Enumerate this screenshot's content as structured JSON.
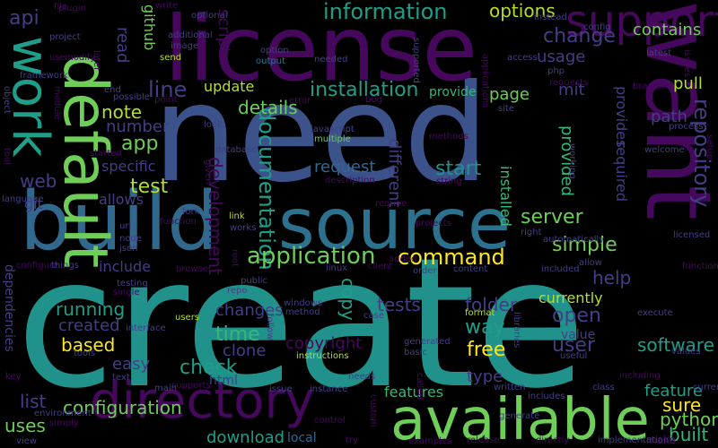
{
  "background_color": "#000000",
  "palette": {
    "purple": "#46085c",
    "violet": "#433e85",
    "indigo": "#3b528b",
    "blue": "#31688e",
    "steel": "#2c728e",
    "teal": "#21918c",
    "cyan": "#1f9e89",
    "green": "#35b779",
    "lime": "#6ece58",
    "yellow": "#b5de2b",
    "gold": "#fde725"
  },
  "words": [
    "create",
    "need",
    "license",
    "want",
    "build",
    "default",
    "source",
    "available",
    "work",
    "directory",
    "support",
    "information",
    "repository",
    "documentation",
    "application",
    "installation",
    "development",
    "change",
    "options",
    "command",
    "server",
    "details",
    "provided",
    "different",
    "request",
    "start",
    "line",
    "script",
    "contains",
    "pull",
    "simple",
    "running",
    "created",
    "features",
    "configuration",
    "download",
    "copyright",
    "software",
    "user",
    "open",
    "tests",
    "check",
    "time",
    "based",
    "way",
    "copy",
    "free",
    "type",
    "feature",
    "python",
    "built",
    "sure",
    "value",
    "help",
    "folder",
    "currently",
    "changes",
    "clone",
    "list",
    "uses",
    "html",
    "easy",
    "web",
    "test",
    "app",
    "note",
    "git",
    "api",
    "update",
    "github",
    "read",
    "usage",
    "mit",
    "page",
    "path",
    "number",
    "specific",
    "allows",
    "include",
    "dependencies",
    "installed",
    "required",
    "provides",
    "file",
    "provide",
    "make",
    "local",
    "custom",
    "use",
    "project",
    "plugin",
    "write",
    "optional",
    "instead",
    "config",
    "additional",
    "image",
    "send",
    "option",
    "output",
    "needed",
    "supported",
    "access",
    "php",
    "requests",
    "site",
    "latest",
    "issues",
    "branch",
    "process",
    "welcome",
    "setup",
    "framework",
    "object",
    "tool",
    "language",
    "end",
    "possible",
    "point",
    "error",
    "bug",
    "javascript",
    "multiple",
    "methods",
    "working",
    "string",
    "database",
    "look",
    "given",
    "description",
    "started",
    "fork",
    "function",
    "url",
    "node",
    "json",
    "link",
    "works",
    "require",
    "projects",
    "right",
    "automatically",
    "licensed",
    "configure",
    "things",
    "browser",
    "root",
    "added",
    "order",
    "client",
    "linux",
    "content",
    "included",
    "allow",
    "functions",
    "public",
    "repo",
    "testing",
    "single",
    "windows",
    "method",
    "users",
    "follow",
    "case",
    "format",
    "libraries",
    "execute",
    "values",
    "interface",
    "tools",
    "instructions",
    "generated",
    "basic",
    "useful",
    "including",
    "class",
    "current",
    "text",
    "needs",
    "called",
    "written",
    "includes",
    "supports",
    "main",
    "issue",
    "instance",
    "environment",
    "simply",
    "control",
    "view",
    "examples",
    "release",
    "directly",
    "implementation",
    "generate",
    "key",
    "try",
    "module",
    "modify",
    "later",
    "applications",
    "versions"
  ]
}
